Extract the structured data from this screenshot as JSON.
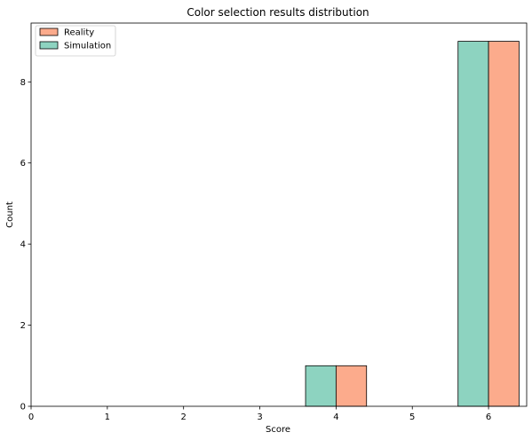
{
  "chart_data": {
    "type": "bar",
    "title": "Color selection results distribution",
    "xlabel": "Score",
    "ylabel": "Count",
    "xlim": [
      0,
      6.5
    ],
    "ylim": [
      0,
      9.45
    ],
    "x_ticks": [
      0,
      1,
      2,
      3,
      4,
      5,
      6
    ],
    "y_ticks": [
      0,
      2,
      4,
      6,
      8
    ],
    "bar_width": 0.4,
    "categories": [
      4,
      6
    ],
    "series": [
      {
        "name": "Simulation",
        "values": [
          1,
          9
        ],
        "color": "#8dd3c0",
        "offset": -0.2
      },
      {
        "name": "Reality",
        "values": [
          1,
          9
        ],
        "color": "#fcab8c",
        "offset": 0.2
      }
    ],
    "legend": {
      "placement": "top-left",
      "entries": [
        {
          "label": "Reality",
          "color": "#fcab8c"
        },
        {
          "label": "Simulation",
          "color": "#8dd3c0"
        }
      ]
    },
    "grid": false
  }
}
